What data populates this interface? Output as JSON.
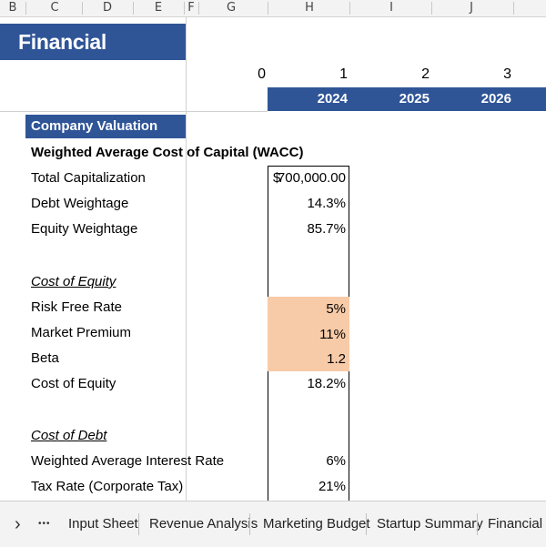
{
  "columns": [
    "B",
    "C",
    "D",
    "E",
    "F",
    "G",
    "H",
    "I",
    "J"
  ],
  "title": "Financial Analysis",
  "periods": [
    "0",
    "1",
    "2",
    "3"
  ],
  "years": [
    "2024",
    "2025",
    "2026"
  ],
  "section_header": "Company Valuation",
  "rows": {
    "wacc_header": "Weighted Average Cost of Capital (WACC)",
    "total_cap": {
      "label": "Total Capitalization",
      "currency": "$",
      "value": "700,000.00"
    },
    "debt_weight": {
      "label": "Debt Weightage",
      "value": "14.3%"
    },
    "equity_weight": {
      "label": "Equity Weightage",
      "value": "85.7%"
    },
    "cost_of_equity_header": "Cost of Equity",
    "risk_free": {
      "label": "Risk Free Rate",
      "value": "5%"
    },
    "market_premium": {
      "label": "Market Premium",
      "value": "11%"
    },
    "beta": {
      "label": "Beta",
      "value": "1.2"
    },
    "cost_of_equity": {
      "label": "Cost of Equity",
      "value": "18.2%"
    },
    "cost_of_debt_header": "Cost of Debt",
    "interest_rate": {
      "label": "Weighted Average Interest Rate",
      "value": "6%"
    },
    "tax_rate": {
      "label": "Tax Rate (Corporate Tax)",
      "value": "21%"
    }
  },
  "tabs": {
    "nav_next": "›",
    "nav_more": "•••",
    "items": [
      "Input Sheet",
      "Revenue Analysis",
      "Marketing Budget",
      "Startup Summary",
      "Financial St"
    ]
  },
  "colors": {
    "header_blue": "#2f5597",
    "input_fill": "#f8cba8"
  }
}
